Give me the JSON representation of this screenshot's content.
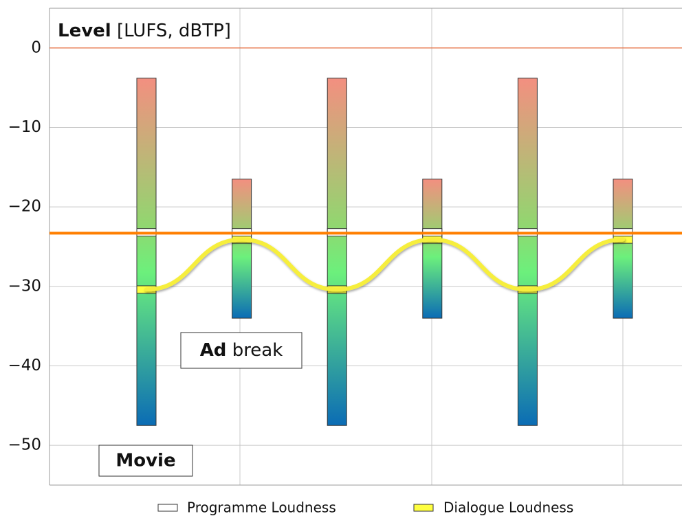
{
  "chart_data": {
    "type": "loudness-bar",
    "title_bold": "Level",
    "title_rest": "[LUFS, dBTP]",
    "categories": [
      null,
      null,
      null,
      null,
      null,
      null
    ],
    "range_top": [
      -3.8,
      -16.5,
      -3.8,
      -16.5,
      -3.8,
      -16.5
    ],
    "range_bottom": [
      -47.5,
      -34,
      -47.5,
      -34,
      -47.5,
      -34
    ],
    "series": [
      {
        "name": "Programme Loudness",
        "color": "#ffffff",
        "values": [
          -23.2,
          -23.2,
          -23.2,
          -23.2,
          -23.2,
          -23.2
        ]
      },
      {
        "name": "Dialogue Loudness",
        "color": "#ffff40",
        "values": [
          -30.4,
          -24.1,
          -30.4,
          -24.1,
          -30.4,
          -24.1
        ]
      }
    ],
    "target": -23.3,
    "target_color": "#ff7f00",
    "peak_line": 0,
    "peak_color": "#e8602c",
    "annotations": [
      {
        "bold": "Movie"
      },
      {
        "bold": "Ad",
        "text": "break"
      }
    ],
    "ylim": [
      -55,
      5
    ],
    "yticks": [
      {
        "value": -50,
        "label": "−50"
      },
      {
        "value": -40,
        "label": "−40"
      },
      {
        "value": -30,
        "label": "−30"
      },
      {
        "value": -20,
        "label": "−20"
      },
      {
        "value": -10,
        "label": "−10"
      },
      0
    ],
    "grid": true
  }
}
